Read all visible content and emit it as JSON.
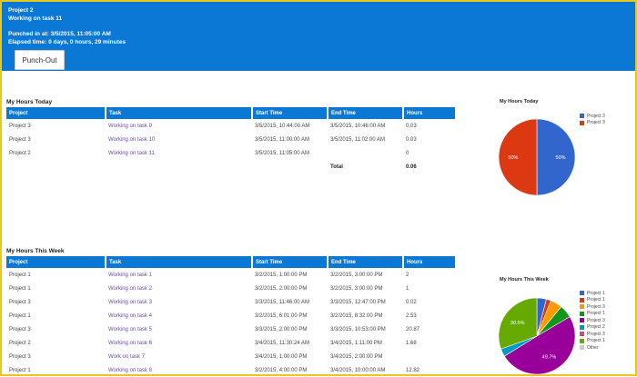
{
  "header": {
    "project": "Project 2",
    "task": "Working on task 11",
    "punched_in": "Punched in at: 3/5/2015, 11:05:00 AM",
    "elapsed": "Elapsed time: 0 days, 0 hours, 29 minutes",
    "punch_out_label": "Punch-Out"
  },
  "today": {
    "title": "My Hours Today",
    "columns": [
      "Project",
      "Task",
      "Start Time",
      "End Time",
      "Hours"
    ],
    "rows": [
      {
        "project": "Project 3",
        "task": "Working on task 9",
        "start": "3/5/2015, 10:44:00 AM",
        "end": "3/5/2015, 10:46:00 AM",
        "hours": "0.03"
      },
      {
        "project": "Project 3",
        "task": "Working on task 10",
        "start": "3/5/2015, 11:00:00 AM",
        "end": "3/5/2015, 11:02:00 AM",
        "hours": "0.03"
      },
      {
        "project": "Project 2",
        "task": "Working on task 11",
        "start": "3/5/2015, 11:05:00 AM",
        "end": "",
        "hours": "0"
      }
    ],
    "total_label": "Total",
    "total_value": "0.06"
  },
  "week": {
    "title": "My Hours This Week",
    "columns": [
      "Project",
      "Task",
      "Start Time",
      "End Time",
      "Hours"
    ],
    "rows": [
      {
        "project": "Project 1",
        "task": "Working on task 1",
        "start": "3/2/2015, 1:00:00 PM",
        "end": "3/2/2015, 3:00:00 PM",
        "hours": "2"
      },
      {
        "project": "Project 1",
        "task": "Working on task 2",
        "start": "3/2/2015, 2:00:00 PM",
        "end": "3/2/2015, 3:00:00 PM",
        "hours": "1"
      },
      {
        "project": "Project 3",
        "task": "Working on task 3",
        "start": "3/3/2015, 11:46:00 AM",
        "end": "3/3/2015, 12:47:00 PM",
        "hours": "0.02"
      },
      {
        "project": "Project 1",
        "task": "Working on task 4",
        "start": "3/2/2015, 6:01:00 PM",
        "end": "3/2/2015, 8:32:00 PM",
        "hours": "2.53"
      },
      {
        "project": "Project 3",
        "task": "Working on task 5",
        "start": "3/3/2015, 2:00:00 PM",
        "end": "3/3/2015, 10:53:00 PM",
        "hours": "20.87"
      },
      {
        "project": "Project 2",
        "task": "Working on task 6",
        "start": "3/4/2015, 11:30:24 AM",
        "end": "3/4/2015, 1:11:00 PM",
        "hours": "1.68"
      },
      {
        "project": "Project 3",
        "task": "Work on task 7",
        "start": "3/4/2015, 1:00:00 PM",
        "end": "3/4/2015, 2:00:00 PM",
        "hours": ""
      },
      {
        "project": "Project 1",
        "task": "Working on task 8",
        "start": "3/2/2015, 4:00:00 PM",
        "end": "3/4/2015, 10:00:00 AM",
        "hours": "12.82"
      }
    ]
  },
  "chart_data": [
    {
      "type": "pie",
      "title": "My Hours Today",
      "series": [
        {
          "name": "Project 3",
          "value": 50,
          "label": "50%",
          "color": "#3366cc"
        },
        {
          "name": "Project 3",
          "value": 50,
          "label": "50%",
          "color": "#dc3912"
        }
      ],
      "legend": "right"
    },
    {
      "type": "pie",
      "title": "My Hours This Week",
      "series": [
        {
          "name": "Project 1",
          "value": 4.0,
          "label": "",
          "color": "#3366cc"
        },
        {
          "name": "Project 1",
          "value": 2.0,
          "label": "",
          "color": "#dc3912"
        },
        {
          "name": "Project 3",
          "value": 5.0,
          "label": "",
          "color": "#ff9900"
        },
        {
          "name": "Project 1",
          "value": 5.5,
          "label": "",
          "color": "#109618"
        },
        {
          "name": "Project 3",
          "value": 49.7,
          "label": "49.7%",
          "color": "#990099"
        },
        {
          "name": "Project 2",
          "value": 3.3,
          "label": "",
          "color": "#0099c6"
        },
        {
          "name": "Project 3",
          "value": 0.0,
          "label": "",
          "color": "#dd4477"
        },
        {
          "name": "Project 1",
          "value": 30.5,
          "label": "30.5%",
          "color": "#66aa00"
        },
        {
          "name": "Other",
          "value": 0.0,
          "label": "",
          "color": "#cccccc"
        }
      ],
      "legend": "right"
    }
  ]
}
